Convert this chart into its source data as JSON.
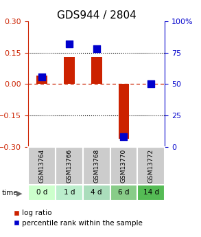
{
  "title": "GDS944 / 2804",
  "samples": [
    "GSM13764",
    "GSM13766",
    "GSM13768",
    "GSM13770",
    "GSM13772"
  ],
  "time_labels": [
    "0 d",
    "1 d",
    "4 d",
    "6 d",
    "14 d"
  ],
  "log_ratio": [
    0.04,
    0.13,
    0.13,
    -0.26,
    0.0
  ],
  "percentile_rank": [
    56,
    82,
    78,
    8,
    50
  ],
  "bar_color": "#cc2200",
  "dot_color": "#0000cc",
  "ylim_left": [
    -0.3,
    0.3
  ],
  "ylim_right": [
    0,
    100
  ],
  "yticks_left": [
    -0.3,
    -0.15,
    0,
    0.15,
    0.3
  ],
  "yticks_right": [
    0,
    25,
    50,
    75,
    100
  ],
  "hlines_dotted": [
    -0.15,
    0.15
  ],
  "hline_zero": 0,
  "time_colors": [
    "#ccffcc",
    "#bbeecc",
    "#aaddbb",
    "#88cc88",
    "#55bb55"
  ],
  "sample_bg_color": "#cccccc",
  "bar_width": 0.4,
  "dot_size": 55,
  "title_fontsize": 11,
  "tick_fontsize": 8,
  "legend_fontsize": 7.5,
  "axis_left_color": "#cc2200",
  "axis_right_color": "#0000cc",
  "zero_line_color": "#cc2200",
  "grid_line_color": "#000000"
}
